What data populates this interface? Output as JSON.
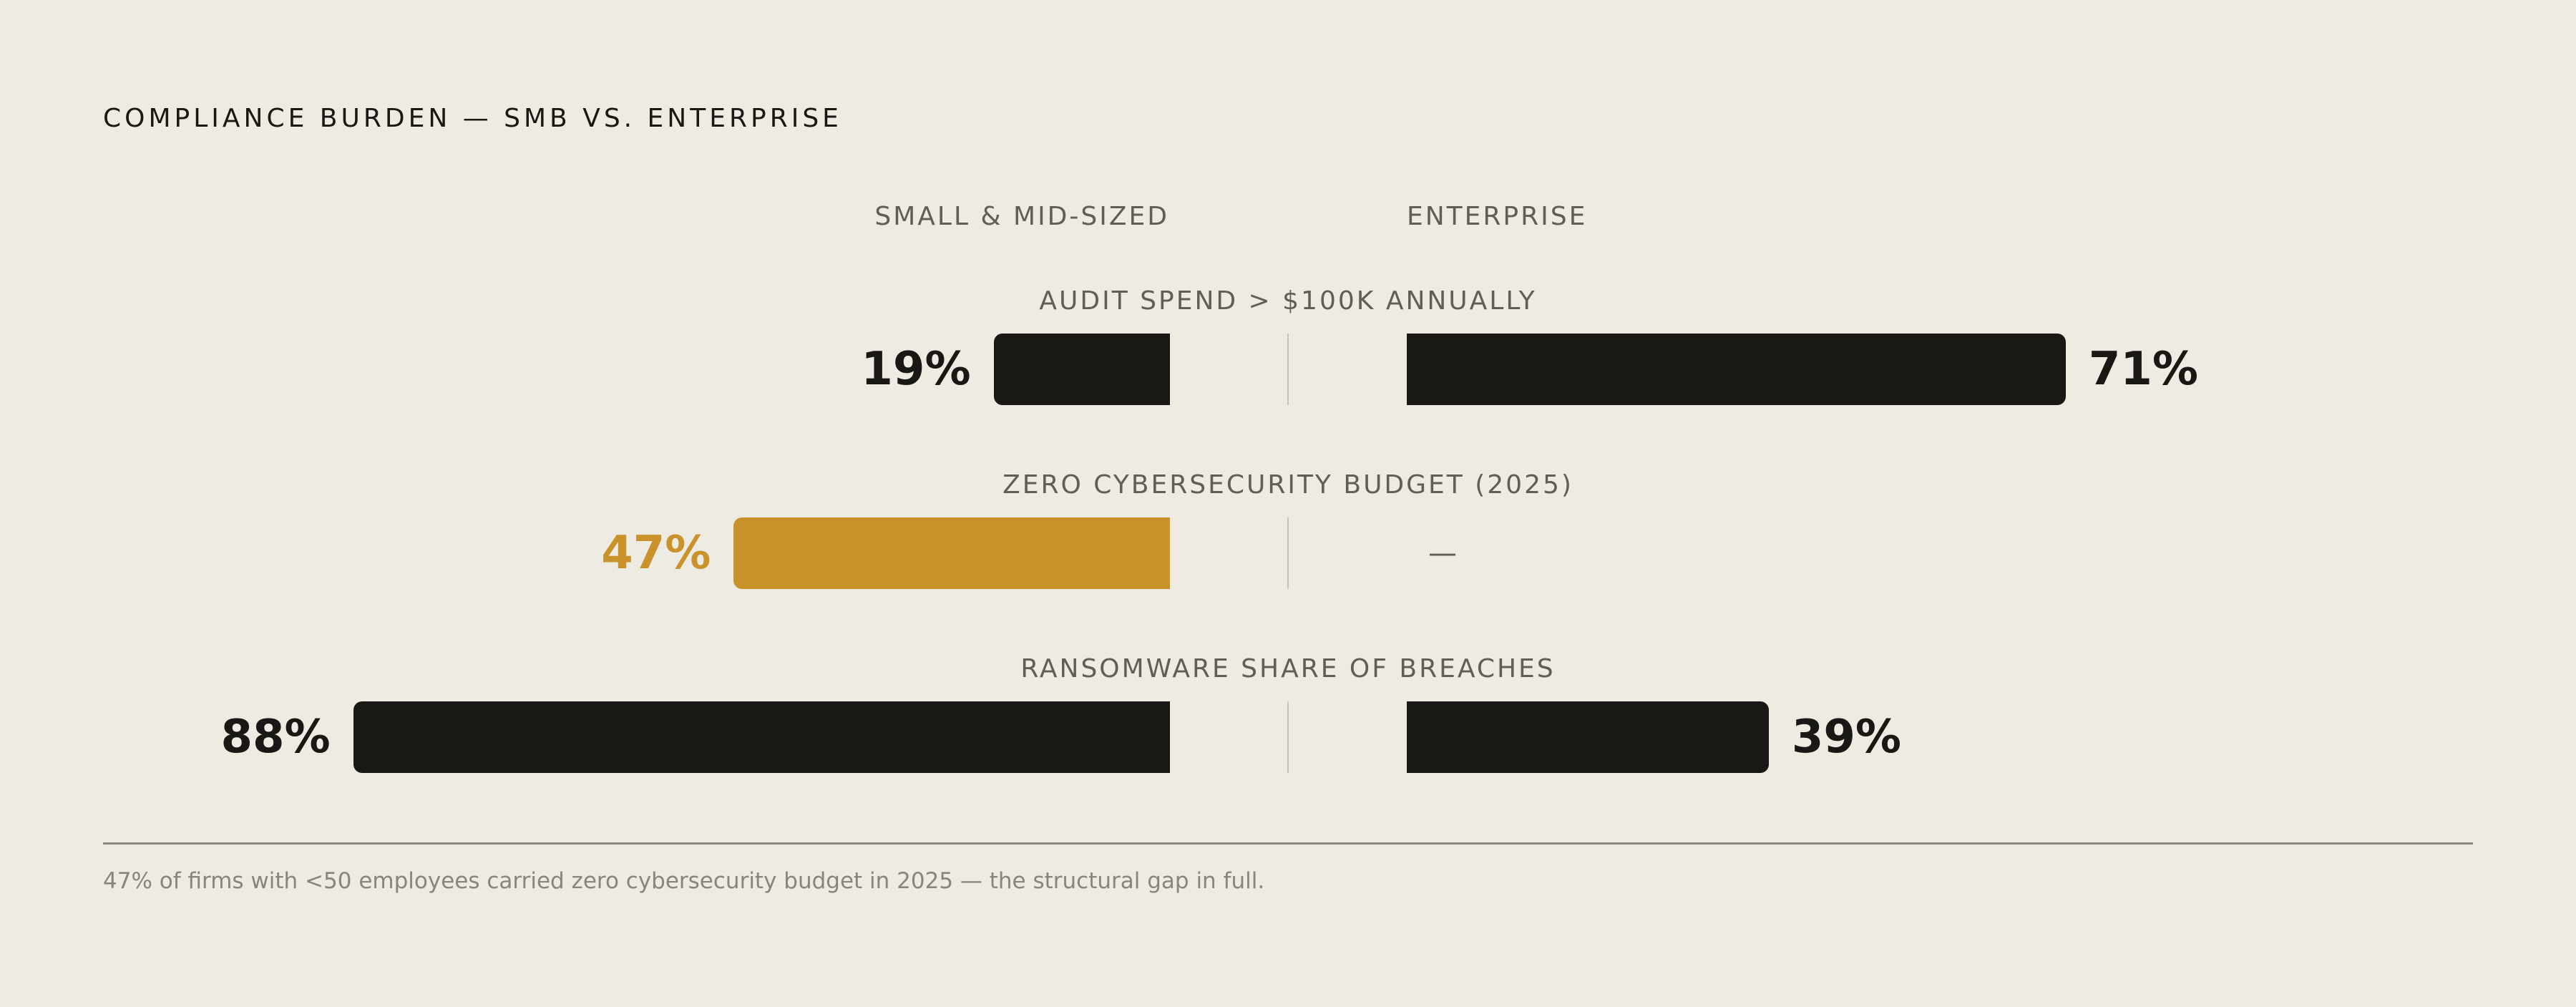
{
  "title": "COMPLIANCE BURDEN — SMB VS. ENTERPRISE",
  "footnote": "47% of firms with <50 employees carried zero cybersecurity budget in 2025 — the structural gap in full.",
  "colors": {
    "background": "#eeebe3",
    "bar": "#1a1814",
    "highlight": "#c9922b",
    "label": "#625d55"
  },
  "chart_data": {
    "type": "bar",
    "orientation": "horizontal-diverging",
    "scale_max_percent": 100,
    "series": [
      {
        "name": "SMALL & MID-SIZED",
        "values": [
          19,
          47,
          88
        ],
        "value_labels": [
          "19%",
          "47%",
          "88%"
        ]
      },
      {
        "name": "ENTERPRISE",
        "values": [
          71,
          null,
          39
        ],
        "value_labels": [
          "71%",
          "—",
          "39%"
        ]
      }
    ],
    "categories": [
      "AUDIT SPEND > $100K ANNUALLY",
      "ZERO CYBERSECURITY BUDGET (2025)",
      "RANSOMWARE SHARE OF BREACHES"
    ],
    "highlight": {
      "series": 0,
      "category": 1
    }
  }
}
